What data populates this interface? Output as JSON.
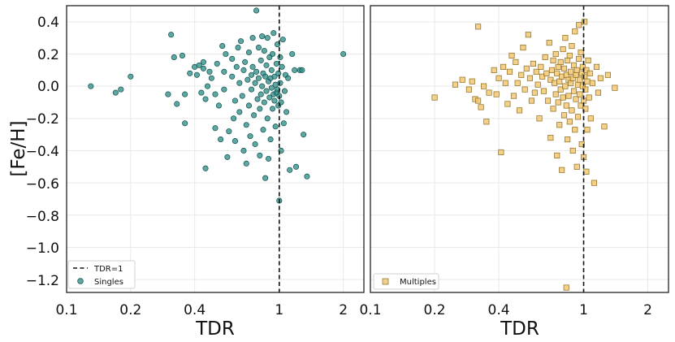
{
  "chart_data": [
    {
      "type": "scatter",
      "panel": "left",
      "xscale": "log",
      "xlim": [
        0.1,
        2.5
      ],
      "ylim": [
        -1.28,
        0.5
      ],
      "xticks": [
        0.1,
        0.2,
        0.4,
        1,
        2
      ],
      "xtick_labels": [
        "0.1",
        "0.2",
        "0.4",
        "1",
        "2"
      ],
      "yticks": [
        0.4,
        0.2,
        0.0,
        -0.2,
        -0.4,
        -0.6,
        -0.8,
        -1.0,
        -1.2
      ],
      "ytick_labels": [
        "0.4",
        "0.2",
        "0.0",
        "−0.2",
        "−0.4",
        "−0.6",
        "−0.8",
        "−1.0",
        "−1.2"
      ],
      "xlabel": "TDR",
      "ylabel": "[Fe/H]",
      "grid": true,
      "reference_line": {
        "x": 1,
        "label": "TDR=1",
        "style": "dashed",
        "color": "#222222"
      },
      "legend": {
        "position": "bottom-left",
        "entries": [
          "TDR=1",
          "Singles"
        ]
      },
      "series": [
        {
          "name": "Singles",
          "marker": "circle",
          "color": "#2a8a84",
          "edgecolor": "#0d4f4b",
          "points": [
            [
              0.13,
              0.0
            ],
            [
              0.17,
              -0.04
            ],
            [
              0.18,
              -0.02
            ],
            [
              0.2,
              0.06
            ],
            [
              0.3,
              -0.05
            ],
            [
              0.31,
              0.32
            ],
            [
              0.32,
              0.18
            ],
            [
              0.33,
              -0.11
            ],
            [
              0.35,
              0.19
            ],
            [
              0.36,
              -0.05
            ],
            [
              0.36,
              -0.23
            ],
            [
              0.38,
              0.08
            ],
            [
              0.4,
              0.12
            ],
            [
              0.41,
              0.07
            ],
            [
              0.42,
              0.13
            ],
            [
              0.43,
              -0.04
            ],
            [
              0.44,
              0.15
            ],
            [
              0.44,
              0.11
            ],
            [
              0.45,
              -0.08
            ],
            [
              0.45,
              -0.51
            ],
            [
              0.46,
              0.0
            ],
            [
              0.47,
              0.09
            ],
            [
              0.48,
              0.05
            ],
            [
              0.5,
              -0.05
            ],
            [
              0.5,
              -0.26
            ],
            [
              0.51,
              0.14
            ],
            [
              0.52,
              -0.12
            ],
            [
              0.53,
              -0.33
            ],
            [
              0.54,
              0.25
            ],
            [
              0.55,
              0.09
            ],
            [
              0.55,
              -0.02
            ],
            [
              0.56,
              0.2
            ],
            [
              0.57,
              -0.44
            ],
            [
              0.58,
              -0.28
            ],
            [
              0.6,
              0.06
            ],
            [
              0.6,
              0.17
            ],
            [
              0.61,
              -0.2
            ],
            [
              0.62,
              -0.09
            ],
            [
              0.62,
              -0.34
            ],
            [
              0.63,
              0.12
            ],
            [
              0.64,
              0.24
            ],
            [
              0.65,
              0.02
            ],
            [
              0.65,
              -0.16
            ],
            [
              0.66,
              0.28
            ],
            [
              0.67,
              -0.06
            ],
            [
              0.68,
              -0.4
            ],
            [
              0.68,
              0.1
            ],
            [
              0.69,
              0.15
            ],
            [
              0.7,
              -0.24
            ],
            [
              0.7,
              -0.48
            ],
            [
              0.71,
              0.04
            ],
            [
              0.72,
              -0.12
            ],
            [
              0.72,
              0.21
            ],
            [
              0.73,
              -0.31
            ],
            [
              0.74,
              0.07
            ],
            [
              0.74,
              -0.02
            ],
            [
              0.75,
              0.3
            ],
            [
              0.75,
              0.12
            ],
            [
              0.76,
              -0.18
            ],
            [
              0.77,
              0.02
            ],
            [
              0.77,
              -0.36
            ],
            [
              0.78,
              0.47
            ],
            [
              0.78,
              0.09
            ],
            [
              0.79,
              -0.08
            ],
            [
              0.8,
              0.24
            ],
            [
              0.8,
              0.05
            ],
            [
              0.81,
              -0.14
            ],
            [
              0.81,
              -0.43
            ],
            [
              0.82,
              0.16
            ],
            [
              0.82,
              -0.05
            ],
            [
              0.83,
              0.31
            ],
            [
              0.83,
              0.0
            ],
            [
              0.84,
              -0.27
            ],
            [
              0.84,
              0.08
            ],
            [
              0.85,
              -0.1
            ],
            [
              0.85,
              0.22
            ],
            [
              0.86,
              0.06
            ],
            [
              0.86,
              -0.57
            ],
            [
              0.87,
              -0.03
            ],
            [
              0.87,
              0.13
            ],
            [
              0.88,
              -0.2
            ],
            [
              0.88,
              0.3
            ],
            [
              0.89,
              0.03
            ],
            [
              0.89,
              -0.45
            ],
            [
              0.9,
              -0.07
            ],
            [
              0.9,
              0.18
            ],
            [
              0.91,
              0.05
            ],
            [
              0.91,
              -0.33
            ],
            [
              0.92,
              -0.01
            ],
            [
              0.92,
              0.1
            ],
            [
              0.93,
              0.2
            ],
            [
              0.93,
              -0.14
            ],
            [
              0.94,
              0.33
            ],
            [
              0.94,
              -0.05
            ],
            [
              0.95,
              -0.09
            ],
            [
              0.95,
              0.06
            ],
            [
              0.96,
              -0.25
            ],
            [
              0.96,
              0.01
            ],
            [
              0.97,
              -0.04
            ],
            [
              0.97,
              0.14
            ],
            [
              0.98,
              -0.02
            ],
            [
              0.98,
              0.26
            ],
            [
              0.99,
              -0.12
            ],
            [
              0.99,
              0.08
            ],
            [
              1.0,
              -0.06
            ],
            [
              1.0,
              -0.71
            ],
            [
              1.01,
              0.02
            ],
            [
              1.01,
              0.18
            ],
            [
              1.02,
              -0.1
            ],
            [
              1.02,
              -0.4
            ],
            [
              1.03,
              0.12
            ],
            [
              1.04,
              0.29
            ],
            [
              1.05,
              -0.23
            ],
            [
              1.06,
              -0.03
            ],
            [
              1.07,
              0.07
            ],
            [
              1.08,
              -0.16
            ],
            [
              1.1,
              0.05
            ],
            [
              1.12,
              -0.52
            ],
            [
              1.15,
              0.2
            ],
            [
              1.18,
              0.1
            ],
            [
              1.2,
              -0.5
            ],
            [
              1.25,
              0.1
            ],
            [
              1.28,
              0.1
            ],
            [
              1.3,
              -0.3
            ],
            [
              1.35,
              -0.56
            ],
            [
              2.0,
              0.2
            ]
          ]
        }
      ]
    },
    {
      "type": "scatter",
      "panel": "right",
      "xscale": "log",
      "xlim": [
        0.1,
        2.5
      ],
      "ylim": [
        -1.28,
        0.5
      ],
      "xticks": [
        0.1,
        0.2,
        0.4,
        1,
        2
      ],
      "xtick_labels": [
        "0.1",
        "0.2",
        "0.4",
        "1",
        "2"
      ],
      "xlabel": "TDR",
      "grid": true,
      "reference_line": {
        "x": 1,
        "style": "dashed",
        "color": "#222222"
      },
      "legend": {
        "position": "bottom-left",
        "entries": [
          "Multiples"
        ]
      },
      "series": [
        {
          "name": "Multiples",
          "marker": "square",
          "color": "#f2c46a",
          "edgecolor": "#8a6a20",
          "points": [
            [
              0.2,
              -0.07
            ],
            [
              0.25,
              0.01
            ],
            [
              0.27,
              0.04
            ],
            [
              0.29,
              -0.02
            ],
            [
              0.3,
              0.03
            ],
            [
              0.31,
              -0.08
            ],
            [
              0.32,
              0.37
            ],
            [
              0.32,
              -0.09
            ],
            [
              0.33,
              -0.13
            ],
            [
              0.34,
              0.0
            ],
            [
              0.35,
              -0.22
            ],
            [
              0.36,
              -0.04
            ],
            [
              0.38,
              0.1
            ],
            [
              0.39,
              -0.05
            ],
            [
              0.4,
              0.05
            ],
            [
              0.41,
              -0.41
            ],
            [
              0.42,
              0.12
            ],
            [
              0.43,
              0.02
            ],
            [
              0.44,
              -0.11
            ],
            [
              0.45,
              0.09
            ],
            [
              0.46,
              0.19
            ],
            [
              0.47,
              -0.06
            ],
            [
              0.48,
              0.15
            ],
            [
              0.49,
              0.02
            ],
            [
              0.5,
              -0.15
            ],
            [
              0.51,
              0.07
            ],
            [
              0.52,
              0.24
            ],
            [
              0.53,
              -0.02
            ],
            [
              0.54,
              0.11
            ],
            [
              0.55,
              0.32
            ],
            [
              0.56,
              0.05
            ],
            [
              0.57,
              -0.09
            ],
            [
              0.58,
              0.14
            ],
            [
              0.59,
              -0.04
            ],
            [
              0.6,
              0.09
            ],
            [
              0.61,
              0.01
            ],
            [
              0.62,
              -0.2
            ],
            [
              0.63,
              0.12
            ],
            [
              0.64,
              0.06
            ],
            [
              0.65,
              -0.03
            ],
            [
              0.66,
              0.18
            ],
            [
              0.67,
              0.08
            ],
            [
              0.68,
              -0.09
            ],
            [
              0.69,
              0.27
            ],
            [
              0.7,
              0.04
            ],
            [
              0.7,
              -0.32
            ],
            [
              0.71,
              0.1
            ],
            [
              0.72,
              -0.14
            ],
            [
              0.72,
              0.16
            ],
            [
              0.73,
              0.02
            ],
            [
              0.74,
              -0.05
            ],
            [
              0.74,
              0.2
            ],
            [
              0.75,
              0.08
            ],
            [
              0.75,
              -0.43
            ],
            [
              0.76,
              -0.1
            ],
            [
              0.76,
              0.12
            ],
            [
              0.77,
              0.03
            ],
            [
              0.77,
              -0.24
            ],
            [
              0.78,
              0.15
            ],
            [
              0.78,
              -0.02
            ],
            [
              0.79,
              0.06
            ],
            [
              0.79,
              -0.52
            ],
            [
              0.8,
              0.23
            ],
            [
              0.8,
              -0.07
            ],
            [
              0.81,
              0.11
            ],
            [
              0.81,
              -0.18
            ],
            [
              0.82,
              0.0
            ],
            [
              0.82,
              0.3
            ],
            [
              0.83,
              -0.12
            ],
            [
              0.83,
              0.07
            ],
            [
              0.84,
              -0.33
            ],
            [
              0.84,
              0.16
            ],
            [
              0.85,
              0.04
            ],
            [
              0.85,
              -0.06
            ],
            [
              0.86,
              0.19
            ],
            [
              0.86,
              -0.22
            ],
            [
              0.87,
              0.09
            ],
            [
              0.87,
              0.02
            ],
            [
              0.88,
              -0.15
            ],
            [
              0.88,
              0.25
            ],
            [
              0.89,
              0.05
            ],
            [
              0.89,
              -0.4
            ],
            [
              0.9,
              -0.03
            ],
            [
              0.9,
              0.13
            ],
            [
              0.91,
              -0.27
            ],
            [
              0.91,
              0.34
            ],
            [
              0.92,
              0.07
            ],
            [
              0.92,
              -0.08
            ],
            [
              0.93,
              0.1
            ],
            [
              0.93,
              -0.5
            ],
            [
              0.94,
              0.01
            ],
            [
              0.94,
              -0.19
            ],
            [
              0.95,
              0.17
            ],
            [
              0.95,
              0.38
            ],
            [
              0.96,
              -0.05
            ],
            [
              0.96,
              0.04
            ],
            [
              0.97,
              -0.12
            ],
            [
              0.97,
              0.21
            ],
            [
              0.98,
              0.08
            ],
            [
              0.98,
              -0.36
            ],
            [
              0.99,
              0.0
            ],
            [
              0.99,
              0.12
            ],
            [
              1.0,
              -0.09
            ],
            [
              1.0,
              -0.44
            ],
            [
              1.01,
              0.06
            ],
            [
              1.01,
              0.4
            ],
            [
              1.02,
              -0.02
            ],
            [
              1.02,
              -0.14
            ],
            [
              1.03,
              0.1
            ],
            [
              1.03,
              -0.53
            ],
            [
              1.04,
              0.03
            ],
            [
              1.04,
              -0.27
            ],
            [
              1.05,
              0.16
            ],
            [
              1.06,
              -0.07
            ],
            [
              1.07,
              0.08
            ],
            [
              1.08,
              -0.2
            ],
            [
              1.1,
              0.02
            ],
            [
              1.12,
              -0.6
            ],
            [
              1.15,
              0.12
            ],
            [
              1.17,
              -0.04
            ],
            [
              1.2,
              0.05
            ],
            [
              1.25,
              -0.25
            ],
            [
              1.3,
              0.07
            ],
            [
              1.4,
              -0.01
            ],
            [
              0.83,
              -1.25
            ]
          ]
        }
      ]
    }
  ]
}
